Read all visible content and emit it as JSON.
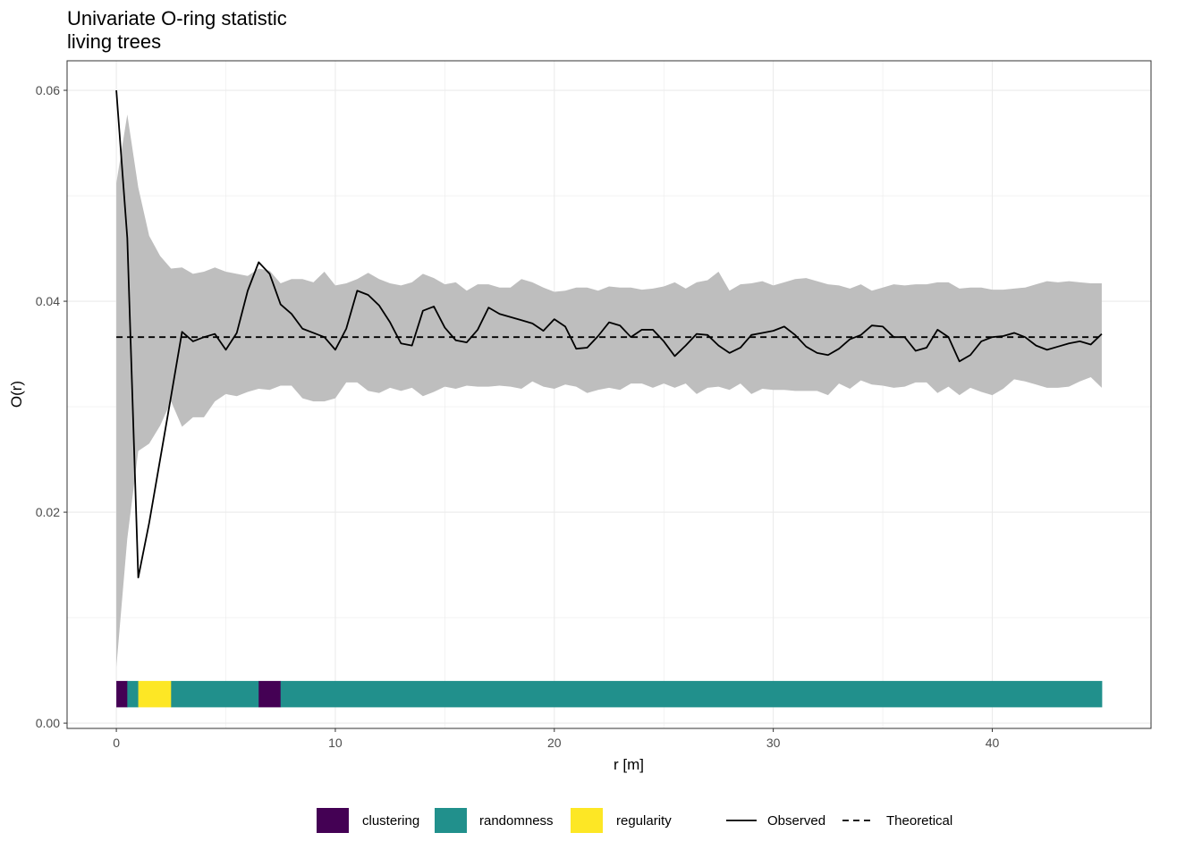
{
  "chart_data": {
    "type": "line",
    "title": "Univariate O-ring statistic",
    "subtitle": "living trees",
    "xlabel": "r [m]",
    "ylabel": "O(r)",
    "xlim": [
      -2.25,
      47.25
    ],
    "ylim": [
      -0.0005,
      0.0628
    ],
    "x_ticks": [
      0,
      10,
      20,
      30,
      40
    ],
    "x_tick_labels": [
      "0",
      "10",
      "20",
      "30",
      "40"
    ],
    "y_ticks": [
      0.0,
      0.02,
      0.04,
      0.06
    ],
    "y_tick_labels": [
      "0.00",
      "0.02",
      "0.04",
      "0.06"
    ],
    "grid": true,
    "legend_position": "bottom",
    "observed": {
      "name": "Observed",
      "x": [
        0,
        0.5,
        1,
        1.5,
        2,
        2.5,
        3,
        3.5,
        4,
        4.5,
        5,
        5.5,
        6,
        6.5,
        7,
        7.5,
        8,
        8.5,
        9,
        9.5,
        10,
        10.5,
        11,
        11.5,
        12,
        12.5,
        13,
        13.5,
        14,
        14.5,
        15,
        15.5,
        16,
        16.5,
        17,
        17.5,
        18,
        18.5,
        19,
        19.5,
        20,
        20.5,
        21,
        21.5,
        22,
        22.5,
        23,
        23.5,
        24,
        24.5,
        25,
        25.5,
        26,
        26.5,
        27,
        27.5,
        28,
        28.5,
        29,
        29.5,
        30,
        30.5,
        31,
        31.5,
        32,
        32.5,
        33,
        33.5,
        34,
        34.5,
        35,
        35.5,
        36,
        36.5,
        37,
        37.5,
        38,
        38.5,
        39,
        39.5,
        40,
        40.5,
        41,
        41.5,
        42,
        42.5,
        43,
        43.5,
        44,
        44.5,
        45
      ],
      "y": [
        0.06,
        0.046,
        0.0138,
        0.019,
        0.025,
        0.031,
        0.0371,
        0.0362,
        0.0366,
        0.0369,
        0.0354,
        0.037,
        0.041,
        0.0437,
        0.0426,
        0.0397,
        0.0388,
        0.0374,
        0.037,
        0.0366,
        0.0354,
        0.0374,
        0.041,
        0.0406,
        0.0396,
        0.038,
        0.036,
        0.0358,
        0.0391,
        0.0395,
        0.0375,
        0.0363,
        0.0361,
        0.0373,
        0.0394,
        0.0388,
        0.0385,
        0.0382,
        0.0379,
        0.0372,
        0.0383,
        0.0376,
        0.0355,
        0.0356,
        0.0367,
        0.038,
        0.0377,
        0.0366,
        0.0373,
        0.0373,
        0.0362,
        0.0348,
        0.0358,
        0.0369,
        0.0368,
        0.0358,
        0.0351,
        0.0356,
        0.0368,
        0.037,
        0.0372,
        0.0376,
        0.0368,
        0.0357,
        0.0351,
        0.0349,
        0.0355,
        0.0364,
        0.0368,
        0.0377,
        0.0376,
        0.0366,
        0.0366,
        0.0353,
        0.0356,
        0.0373,
        0.0366,
        0.0343,
        0.0349,
        0.0362,
        0.0366,
        0.0367,
        0.037,
        0.0366,
        0.0358,
        0.0354,
        0.0357,
        0.036,
        0.0362,
        0.0359,
        0.0369
      ]
    },
    "theoretical": {
      "name": "Theoretical",
      "x": [
        0,
        45
      ],
      "y": [
        0.0366,
        0.0366
      ]
    },
    "envelope": {
      "x": [
        0,
        0.5,
        1,
        1.5,
        2,
        2.5,
        3,
        3.5,
        4,
        4.5,
        5,
        5.5,
        6,
        6.5,
        7,
        7.5,
        8,
        8.5,
        9,
        9.5,
        10,
        10.5,
        11,
        11.5,
        12,
        12.5,
        13,
        13.5,
        14,
        14.5,
        15,
        15.5,
        16,
        16.5,
        17,
        17.5,
        18,
        18.5,
        19,
        19.5,
        20,
        20.5,
        21,
        21.5,
        22,
        22.5,
        23,
        23.5,
        24,
        24.5,
        25,
        25.5,
        26,
        26.5,
        27,
        27.5,
        28,
        28.5,
        29,
        29.5,
        30,
        30.5,
        31,
        31.5,
        32,
        32.5,
        33,
        33.5,
        34,
        34.5,
        35,
        35.5,
        36,
        36.5,
        37,
        37.5,
        38,
        38.5,
        39,
        39.5,
        40,
        40.5,
        41,
        41.5,
        42,
        42.5,
        43,
        43.5,
        44,
        44.5,
        45
      ],
      "lo": [
        0.0053,
        0.0175,
        0.0258,
        0.0265,
        0.0282,
        0.0305,
        0.0281,
        0.029,
        0.029,
        0.0305,
        0.0312,
        0.031,
        0.0314,
        0.0317,
        0.0316,
        0.032,
        0.032,
        0.0308,
        0.0305,
        0.0305,
        0.0308,
        0.0323,
        0.0323,
        0.0315,
        0.0313,
        0.0318,
        0.0315,
        0.0318,
        0.031,
        0.0314,
        0.0319,
        0.0317,
        0.032,
        0.0319,
        0.0319,
        0.032,
        0.0319,
        0.0317,
        0.0324,
        0.0319,
        0.0317,
        0.0321,
        0.0319,
        0.0313,
        0.0316,
        0.0318,
        0.0316,
        0.0322,
        0.0322,
        0.0318,
        0.0322,
        0.0318,
        0.0322,
        0.0312,
        0.0318,
        0.0319,
        0.0316,
        0.0322,
        0.0312,
        0.0317,
        0.0316,
        0.0316,
        0.0315,
        0.0315,
        0.0315,
        0.0311,
        0.0322,
        0.0317,
        0.0325,
        0.0321,
        0.032,
        0.0318,
        0.0319,
        0.0323,
        0.0323,
        0.0313,
        0.0319,
        0.0311,
        0.0318,
        0.0314,
        0.0311,
        0.0317,
        0.0326,
        0.0324,
        0.0321,
        0.0318,
        0.0318,
        0.0319,
        0.0324,
        0.0328,
        0.0318
      ],
      "hi": [
        0.0512,
        0.0577,
        0.0508,
        0.0462,
        0.0443,
        0.0431,
        0.0432,
        0.0426,
        0.0428,
        0.0432,
        0.0428,
        0.0426,
        0.0424,
        0.0431,
        0.0429,
        0.0417,
        0.0421,
        0.0421,
        0.0418,
        0.0428,
        0.0415,
        0.0417,
        0.0421,
        0.0427,
        0.0421,
        0.0417,
        0.0415,
        0.0418,
        0.0426,
        0.0422,
        0.0416,
        0.0418,
        0.041,
        0.0416,
        0.0416,
        0.0413,
        0.0413,
        0.0421,
        0.0418,
        0.0413,
        0.0409,
        0.041,
        0.0413,
        0.0413,
        0.041,
        0.0414,
        0.0413,
        0.0413,
        0.0411,
        0.0412,
        0.0414,
        0.0418,
        0.0412,
        0.0418,
        0.042,
        0.0428,
        0.041,
        0.0416,
        0.0417,
        0.0419,
        0.0415,
        0.0418,
        0.0421,
        0.0422,
        0.0419,
        0.0416,
        0.0415,
        0.0412,
        0.0416,
        0.041,
        0.0413,
        0.0416,
        0.0415,
        0.0416,
        0.0416,
        0.0418,
        0.0418,
        0.0412,
        0.0413,
        0.0413,
        0.0411,
        0.0411,
        0.0412,
        0.0413,
        0.0416,
        0.0419,
        0.0418,
        0.0419,
        0.0418,
        0.0417,
        0.0417
      ]
    },
    "classification": {
      "y_range": [
        0.0015,
        0.004
      ],
      "segments": [
        {
          "from": 0,
          "to": 0.5,
          "class": "clustering"
        },
        {
          "from": 0.5,
          "to": 1,
          "class": "randomness"
        },
        {
          "from": 1,
          "to": 2.5,
          "class": "regularity"
        },
        {
          "from": 2.5,
          "to": 6.5,
          "class": "randomness"
        },
        {
          "from": 6.5,
          "to": 7.5,
          "class": "clustering"
        },
        {
          "from": 7.5,
          "to": 45,
          "class": "randomness"
        }
      ]
    },
    "legend": {
      "fill": [
        {
          "label": "clustering",
          "color": "#440154"
        },
        {
          "label": "randomness",
          "color": "#21908C"
        },
        {
          "label": "regularity",
          "color": "#FDE725"
        }
      ],
      "lines": [
        {
          "label": "Observed",
          "style": "solid"
        },
        {
          "label": "Theoretical",
          "style": "dashed"
        }
      ]
    },
    "colors": {
      "envelope": "#bebebe",
      "line": "#000000",
      "grid_major": "#ebebeb",
      "panel_border": "#333333",
      "tick_text": "#4d4d4d"
    }
  }
}
